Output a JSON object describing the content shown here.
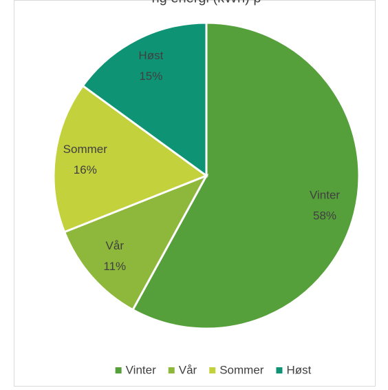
{
  "chart_data": {
    "type": "pie",
    "title": "ng energi (kWh) p",
    "categories": [
      "Vinter",
      "Vår",
      "Sommer",
      "Høst"
    ],
    "values": [
      58,
      11,
      16,
      15
    ],
    "value_labels": [
      "58%",
      "11%",
      "16%",
      "15%"
    ],
    "colors": [
      "#56a03b",
      "#8db83b",
      "#c3d13c",
      "#0e9474"
    ],
    "legend": "bottom"
  }
}
